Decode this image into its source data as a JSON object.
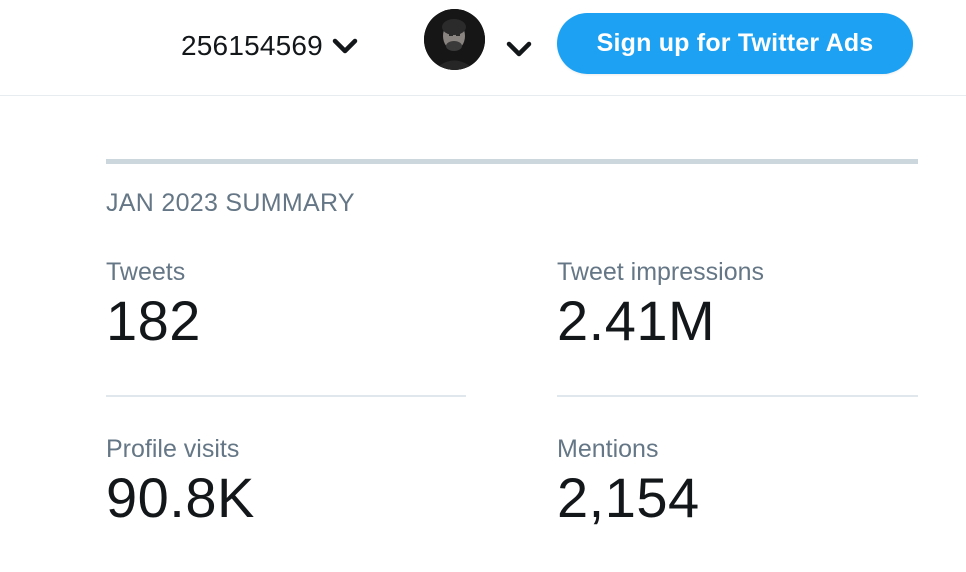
{
  "header": {
    "account_id": "256154569",
    "ads_button_label": "Sign up for Twitter Ads",
    "icons": {
      "account_dropdown": "chevron-down-icon",
      "avatar_dropdown": "chevron-down-icon"
    }
  },
  "summary": {
    "title": "JAN 2023 SUMMARY",
    "stats": [
      {
        "label": "Tweets",
        "value": "182"
      },
      {
        "label": "Tweet impressions",
        "value": "2.41M"
      },
      {
        "label": "Profile visits",
        "value": "90.8K"
      },
      {
        "label": "Mentions",
        "value": "2,154"
      }
    ]
  },
  "colors": {
    "accent": "#1da1f2",
    "text_primary": "#14171a",
    "text_secondary": "#657786",
    "rule": "#ccd6dd"
  }
}
